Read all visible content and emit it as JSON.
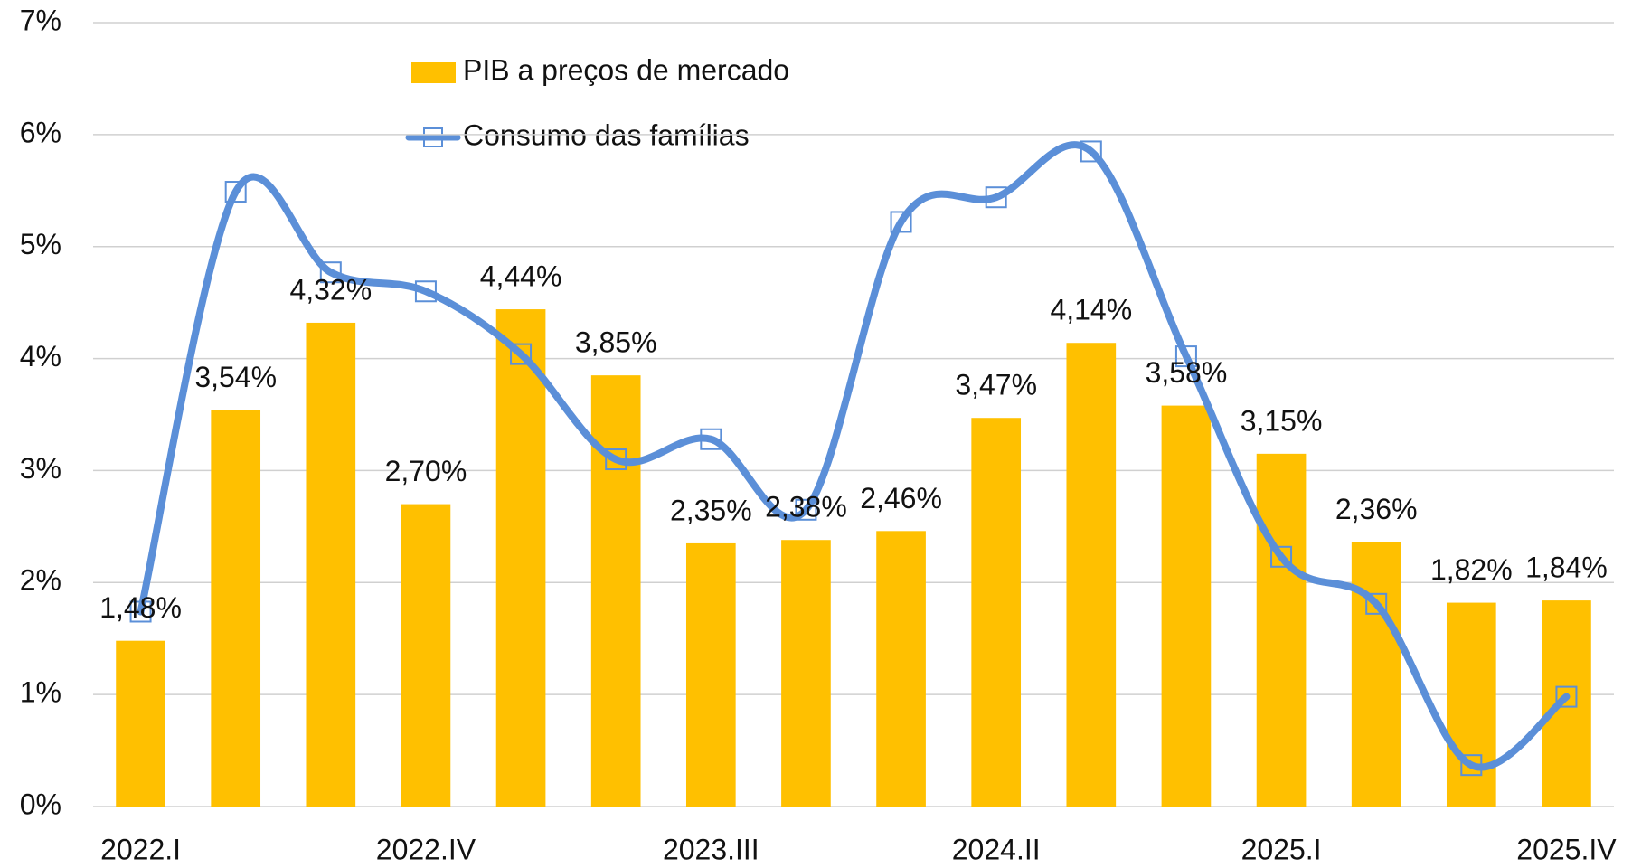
{
  "chart_data": {
    "type": "bar_line",
    "categories": [
      "2022.I",
      null,
      null,
      "2022.IV",
      null,
      null,
      "2023.III",
      null,
      null,
      "2024.II",
      null,
      null,
      "2025.I",
      null,
      null,
      "2025.IV"
    ],
    "series": [
      {
        "name": "PIB a preços de mercado",
        "type": "bar",
        "color": "#ffc000",
        "values": [
          1.48,
          3.54,
          4.32,
          2.7,
          4.44,
          3.85,
          2.35,
          2.38,
          2.46,
          3.47,
          4.14,
          3.58,
          3.15,
          2.36,
          1.82,
          1.84
        ],
        "value_labels": [
          "1,48%",
          "3,54%",
          "4,32%",
          "2,70%",
          "4,44%",
          "3,85%",
          "2,35%",
          "2,38%",
          "2,46%",
          "3,47%",
          "4,14%",
          "3,58%",
          "3,15%",
          "2,36%",
          "1,82%",
          "1,84%"
        ]
      },
      {
        "name": "Consumo das famílias",
        "type": "line",
        "color": "#5b8fd8",
        "values": [
          1.74,
          5.49,
          4.77,
          4.6,
          4.04,
          3.1,
          3.28,
          2.65,
          5.22,
          5.44,
          5.85,
          4.02,
          2.23,
          1.81,
          0.37,
          0.98
        ]
      }
    ],
    "ylim": [
      0,
      7
    ],
    "yticks": [
      {
        "value": 0,
        "label": "0%"
      },
      {
        "value": 1,
        "label": "1%"
      },
      {
        "value": 2,
        "label": "2%"
      },
      {
        "value": 3,
        "label": "3%"
      },
      {
        "value": 4,
        "label": "4%"
      },
      {
        "value": 5,
        "label": "5%"
      },
      {
        "value": 6,
        "label": "6%"
      },
      {
        "value": 7,
        "label": "7%"
      }
    ],
    "grid": true,
    "legend": "top"
  }
}
